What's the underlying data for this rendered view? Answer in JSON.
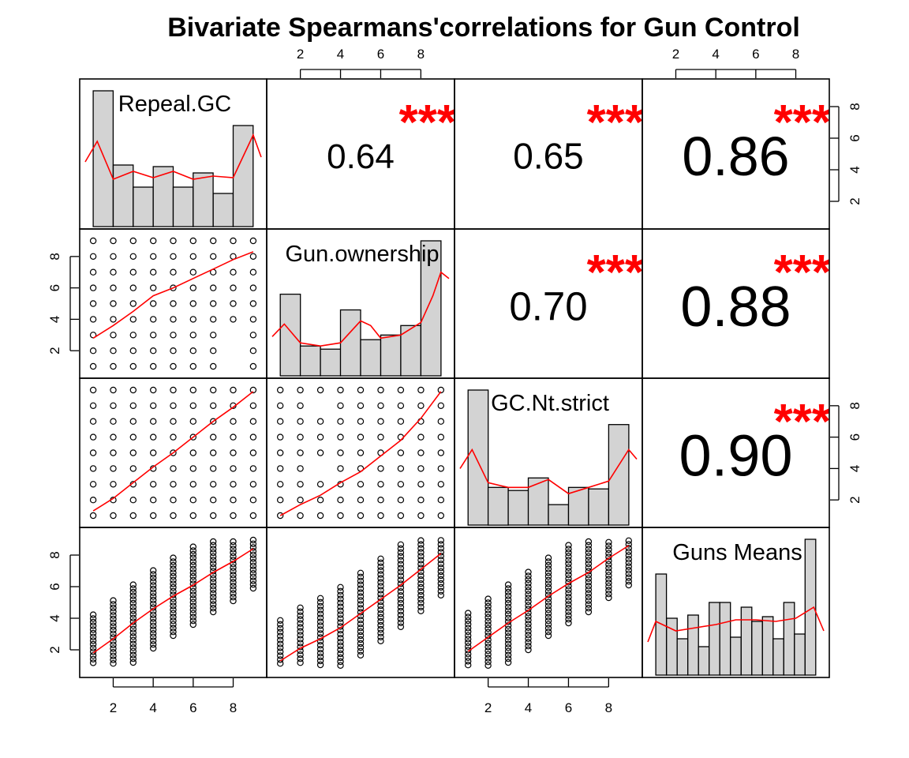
{
  "chart_data": {
    "type": "scatter",
    "title": "Bivariate Spearmans'correlations for Gun Control",
    "variables": [
      "Repeal.GC",
      "Gun.ownership",
      "GC.Nt.strict",
      "Guns Means"
    ],
    "axis_ticks": [
      "2",
      "4",
      "6",
      "8"
    ],
    "axis_range": [
      0.6,
      9.4
    ],
    "grid": false,
    "correlations": [
      {
        "row": 0,
        "col": 1,
        "value": "0.64",
        "stars": "***"
      },
      {
        "row": 0,
        "col": 2,
        "value": "0.65",
        "stars": "***"
      },
      {
        "row": 0,
        "col": 3,
        "value": "0.86",
        "stars": "***"
      },
      {
        "row": 1,
        "col": 2,
        "value": "0.70",
        "stars": "***"
      },
      {
        "row": 1,
        "col": 3,
        "value": "0.88",
        "stars": "***"
      },
      {
        "row": 2,
        "col": 3,
        "value": "0.90",
        "stars": "***"
      }
    ],
    "histograms": [
      {
        "var": "Repeal.GC",
        "counts": [
          9.0,
          4.3,
          2.9,
          4.2,
          2.9,
          3.8,
          2.5,
          6.8
        ],
        "density": [
          [
            0.6,
            4.5
          ],
          [
            1.2,
            5.8
          ],
          [
            2.0,
            3.4
          ],
          [
            3.0,
            3.9
          ],
          [
            4.0,
            3.5
          ],
          [
            5.0,
            3.9
          ],
          [
            6.0,
            3.4
          ],
          [
            7.0,
            3.6
          ],
          [
            8.0,
            3.5
          ],
          [
            9.0,
            6.2
          ],
          [
            9.4,
            4.8
          ]
        ]
      },
      {
        "var": "Gun.ownership",
        "counts": [
          5.6,
          2.3,
          2.1,
          4.6,
          2.7,
          3.0,
          3.6,
          9.0
        ],
        "density": [
          [
            0.6,
            2.9
          ],
          [
            1.2,
            3.7
          ],
          [
            2.0,
            2.5
          ],
          [
            3.0,
            2.3
          ],
          [
            4.0,
            2.5
          ],
          [
            5.0,
            3.9
          ],
          [
            5.5,
            3.6
          ],
          [
            6.0,
            2.8
          ],
          [
            7.0,
            3.0
          ],
          [
            8.0,
            3.8
          ],
          [
            8.6,
            5.5
          ],
          [
            9.0,
            7.0
          ],
          [
            9.4,
            6.6
          ]
        ]
      },
      {
        "var": "GC.Nt.strict",
        "counts": [
          9.0,
          2.8,
          2.6,
          3.4,
          1.7,
          2.8,
          2.7,
          6.8
        ],
        "density": [
          [
            0.6,
            4.0
          ],
          [
            1.2,
            5.2
          ],
          [
            2.0,
            3.1
          ],
          [
            3.0,
            2.8
          ],
          [
            4.0,
            2.8
          ],
          [
            5.0,
            3.3
          ],
          [
            6.0,
            2.4
          ],
          [
            7.0,
            2.8
          ],
          [
            8.0,
            3.2
          ],
          [
            9.0,
            5.2
          ],
          [
            9.4,
            4.6
          ]
        ]
      },
      {
        "var": "Guns Means",
        "counts": [
          6.8,
          4.0,
          2.7,
          4.2,
          2.2,
          5.0,
          5.0,
          2.8,
          4.7,
          3.8,
          4.1,
          2.7,
          5.0,
          3.0,
          9.0
        ],
        "density": [
          [
            0.6,
            2.5
          ],
          [
            1.0,
            3.8
          ],
          [
            2.0,
            3.2
          ],
          [
            3.0,
            3.4
          ],
          [
            4.0,
            3.6
          ],
          [
            5.0,
            3.9
          ],
          [
            6.0,
            3.9
          ],
          [
            7.0,
            3.8
          ],
          [
            8.0,
            4.0
          ],
          [
            8.9,
            4.7
          ],
          [
            9.4,
            3.2
          ]
        ]
      }
    ],
    "scatter_panels": [
      {
        "x_var": "Repeal.GC",
        "y_var": "Gun.ownership",
        "smooth": [
          [
            1.0,
            2.8
          ],
          [
            2.0,
            3.6
          ],
          [
            3.0,
            4.5
          ],
          [
            4.0,
            5.5
          ],
          [
            5.0,
            6.0
          ],
          [
            6.0,
            6.6
          ],
          [
            7.0,
            7.2
          ],
          [
            8.0,
            7.8
          ],
          [
            9.0,
            8.3
          ]
        ]
      },
      {
        "x_var": "Repeal.GC",
        "y_var": "GC.Nt.strict",
        "smooth": [
          [
            1.0,
            1.3
          ],
          [
            2.0,
            2.1
          ],
          [
            3.0,
            3.1
          ],
          [
            4.0,
            4.1
          ],
          [
            5.0,
            5.0
          ],
          [
            6.0,
            6.0
          ],
          [
            7.0,
            7.0
          ],
          [
            8.0,
            7.9
          ],
          [
            9.0,
            8.9
          ]
        ]
      },
      {
        "x_var": "Gun.ownership",
        "y_var": "GC.Nt.strict",
        "smooth": [
          [
            1.0,
            1.0
          ],
          [
            2.0,
            1.7
          ],
          [
            3.0,
            2.3
          ],
          [
            4.0,
            3.1
          ],
          [
            5.0,
            3.8
          ],
          [
            6.0,
            4.8
          ],
          [
            7.0,
            5.8
          ],
          [
            8.0,
            7.2
          ],
          [
            9.0,
            8.9
          ]
        ]
      },
      {
        "x_var": "Repeal.GC",
        "y_var": "Guns Means",
        "smooth": [
          [
            1.0,
            1.8
          ],
          [
            2.0,
            2.7
          ],
          [
            3.0,
            3.7
          ],
          [
            4.0,
            4.6
          ],
          [
            5.0,
            5.4
          ],
          [
            6.0,
            6.1
          ],
          [
            7.0,
            6.9
          ],
          [
            8.0,
            7.6
          ],
          [
            9.0,
            8.4
          ]
        ]
      },
      {
        "x_var": "Gun.ownership",
        "y_var": "Guns Means",
        "smooth": [
          [
            1.0,
            1.3
          ],
          [
            2.0,
            2.1
          ],
          [
            3.0,
            2.7
          ],
          [
            4.0,
            3.4
          ],
          [
            5.0,
            4.3
          ],
          [
            6.0,
            5.2
          ],
          [
            7.0,
            6.1
          ],
          [
            8.0,
            7.1
          ],
          [
            9.0,
            8.1
          ]
        ]
      },
      {
        "x_var": "GC.Nt.strict",
        "y_var": "Guns Means",
        "smooth": [
          [
            1.0,
            1.9
          ],
          [
            2.0,
            2.8
          ],
          [
            3.0,
            3.7
          ],
          [
            4.0,
            4.5
          ],
          [
            5.0,
            5.4
          ],
          [
            6.0,
            6.2
          ],
          [
            7.0,
            6.9
          ],
          [
            8.0,
            7.8
          ],
          [
            9.0,
            8.6
          ]
        ]
      }
    ]
  }
}
